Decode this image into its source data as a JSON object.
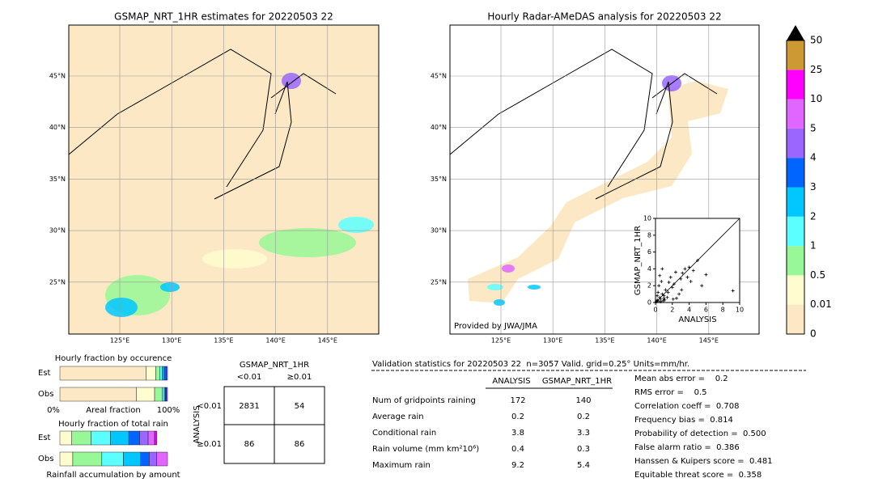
{
  "maps": [
    {
      "title": "GSMAP_NRT_1HR estimates for 20220503 22",
      "lat_labels": [
        "45°N",
        "40°N",
        "35°N",
        "30°N",
        "25°N"
      ],
      "lon_labels": [
        "125°E",
        "130°E",
        "135°E",
        "140°E",
        "145°E"
      ]
    },
    {
      "title": "Hourly Radar-AMeDAS analysis for 20220503 22",
      "lat_labels": [
        "45°N",
        "40°N",
        "35°N",
        "30°N",
        "25°N"
      ],
      "lon_labels": [
        "125°E",
        "130°E",
        "135°E",
        "140°E",
        "145°E"
      ],
      "credit": "Provided by JWA/JMA"
    }
  ],
  "colorbar": {
    "labels": [
      "0",
      "0.01",
      "0.5",
      "1",
      "2",
      "3",
      "4",
      "5",
      "10",
      "25",
      "50"
    ],
    "colors": [
      "#fce8c4",
      "#fffcd0",
      "#98f898",
      "#5cffff",
      "#00c8ff",
      "#0064ff",
      "#9966ff",
      "#e066ff",
      "#ff00ff",
      "#cc9933"
    ],
    "over_color": "#000000"
  },
  "scatter": {
    "type": "scatter",
    "xlabel": "ANALYSIS",
    "ylabel": "GSMAP_NRT_1HR",
    "xlim": [
      0,
      10
    ],
    "ylim": [
      0,
      10
    ],
    "xticks": [
      0,
      2,
      4,
      6,
      8,
      10
    ],
    "yticks": [
      0,
      2,
      4,
      6,
      8,
      10
    ],
    "x": [
      0.1,
      0.2,
      0.3,
      0.5,
      0.6,
      0.8,
      1.0,
      1.2,
      0.4,
      0.7,
      1.5,
      1.8,
      2.0,
      2.2,
      2.5,
      3.0,
      3.2,
      3.5,
      3.8,
      4.0,
      4.2,
      4.5,
      5.0,
      0.3,
      0.9,
      1.1,
      1.4,
      2.8,
      0.5,
      0.2,
      1.6,
      2.4,
      3.1,
      0.8,
      9.2,
      5.5,
      6.0,
      1.0,
      0.6,
      2.1
    ],
    "y": [
      0.1,
      0.3,
      0.2,
      0.6,
      0.4,
      1.0,
      0.8,
      1.5,
      2.0,
      2.5,
      1.2,
      3.0,
      1.8,
      2.2,
      0.5,
      2.8,
      3.5,
      4.0,
      3.0,
      4.2,
      2.5,
      3.8,
      5.0,
      1.2,
      0.2,
      0.3,
      0.6,
      1.0,
      3.2,
      0.8,
      2.4,
      3.6,
      1.5,
      4.0,
      1.4,
      2.0,
      3.3,
      0.5,
      0.1,
      0.4
    ]
  },
  "fraction_occurrence": {
    "title": "Hourly fraction by occurence",
    "rows": [
      "Est",
      "Obs"
    ],
    "axis_labels": [
      "0%",
      "Areal fraction",
      "100%"
    ],
    "colors": [
      "#fce8c4",
      "#fffcd0",
      "#98f898",
      "#5cffff",
      "#00c8ff",
      "#0064ff",
      "#9966ff"
    ],
    "segments": [
      [
        0.8,
        0.09,
        0.04,
        0.02,
        0.02,
        0.02,
        0.01
      ],
      [
        0.71,
        0.17,
        0.07,
        0.02,
        0.01,
        0.01,
        0.01
      ]
    ]
  },
  "fraction_total": {
    "title": "Hourly fraction of total rain",
    "rows": [
      "Est",
      "Obs"
    ],
    "xlabel": "Rainfall accumulation by amount",
    "colors": [
      "#fffcd0",
      "#98f898",
      "#5cffff",
      "#00c8ff",
      "#0064ff",
      "#9966ff",
      "#e066ff",
      "#ff00ff"
    ],
    "segments": [
      [
        0.11,
        0.18,
        0.18,
        0.17,
        0.1,
        0.08,
        0.06,
        0.02
      ],
      [
        0.12,
        0.27,
        0.2,
        0.16,
        0.08,
        0.07,
        0.1,
        0.0
      ]
    ]
  },
  "contingency": {
    "title": "GSMAP_NRT_1HR",
    "col_labels": [
      "<0.01",
      "≥0.01"
    ],
    "row_title": "ANALYSIS",
    "row_labels": [
      "<0.01",
      "≥0.01"
    ],
    "cells": [
      [
        2831,
        54
      ],
      [
        86,
        86
      ]
    ]
  },
  "validation": {
    "header": "Validation statistics for 20220503 22  n=3057 Valid. grid=0.25° Units=mm/hr.",
    "columns": [
      "ANALYSIS",
      "GSMAP_NRT_1HR"
    ],
    "rows": [
      {
        "label": "Num of gridpoints raining",
        "values": [
          172,
          140
        ]
      },
      {
        "label": "Average rain",
        "values": [
          0.2,
          0.2
        ]
      },
      {
        "label": "Conditional rain",
        "values": [
          3.8,
          3.3
        ]
      },
      {
        "label": "Rain volume (mm km²10⁶)",
        "values": [
          0.4,
          0.3
        ]
      },
      {
        "label": "Maximum rain",
        "values": [
          9.2,
          5.4
        ]
      }
    ],
    "scores": [
      "Mean abs error =    0.2",
      "RMS error =    0.5",
      "Correlation coeff =  0.708",
      "Frequency bias =  0.814",
      "Probability of detection =  0.500",
      "False alarm ratio =  0.386",
      "Hanssen & Kuipers score =  0.481",
      "Equitable threat score =  0.358"
    ]
  }
}
